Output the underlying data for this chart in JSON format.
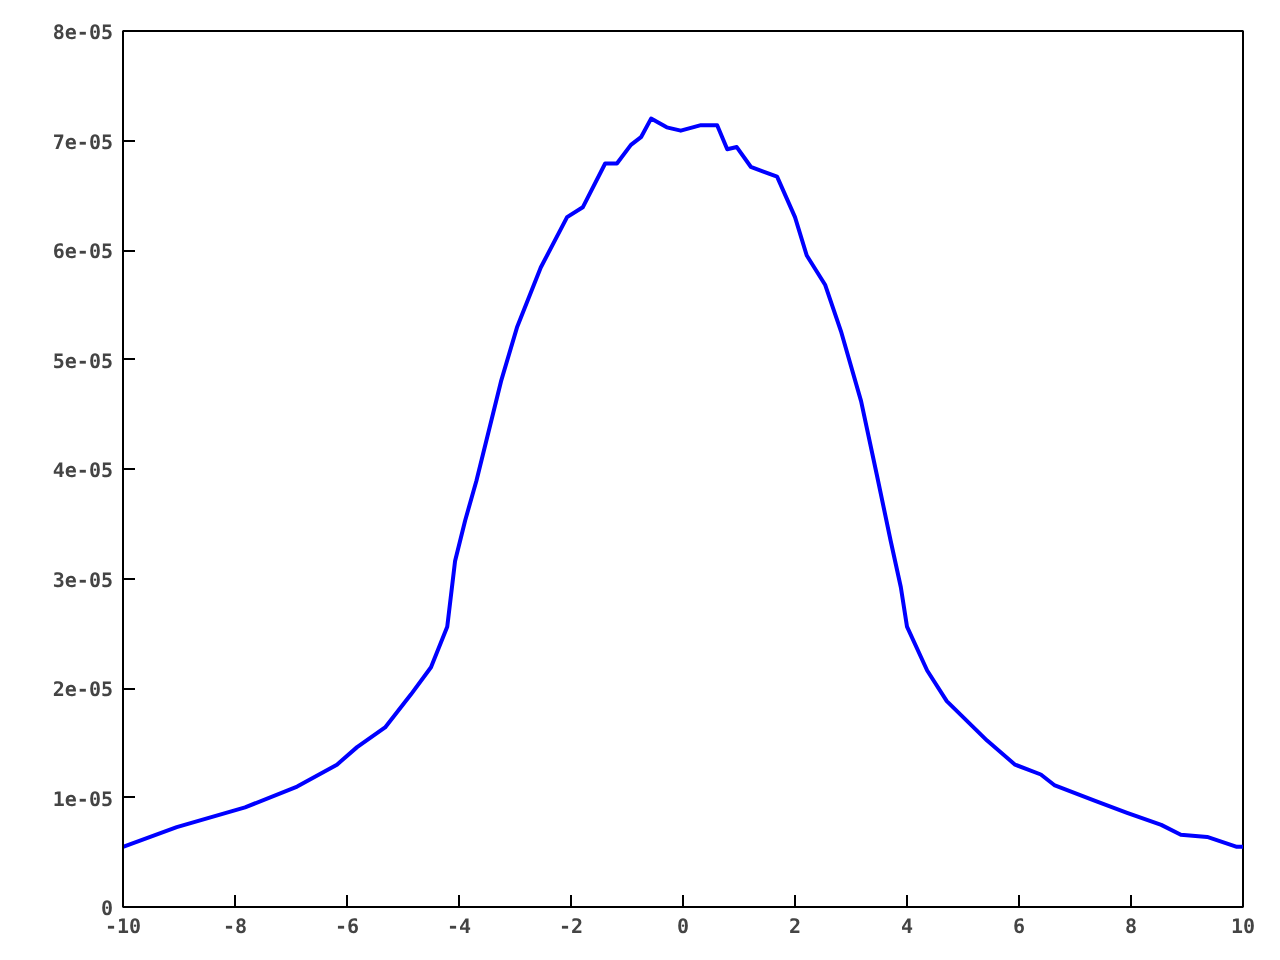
{
  "chart_data": {
    "type": "line",
    "grid": false,
    "marker": "none",
    "line_style": "solid",
    "xlim": [
      -10,
      10
    ],
    "ylim": [
      0,
      8e-05
    ],
    "xticks": [
      -10,
      -8,
      -6,
      -4,
      -2,
      0,
      2,
      4,
      6,
      8,
      10
    ],
    "yticks": [
      {
        "value": 0,
        "label": "0"
      },
      {
        "value": 1e-05,
        "label": "1e-05"
      },
      {
        "value": 2e-05,
        "label": "2e-05"
      },
      {
        "value": 3e-05,
        "label": "3e-05"
      },
      {
        "value": 4e-05,
        "label": "4e-05"
      },
      {
        "value": 5e-05,
        "label": "5e-05"
      },
      {
        "value": 6e-05,
        "label": "6e-05"
      },
      {
        "value": 7e-05,
        "label": "7e-05"
      },
      {
        "value": 8e-05,
        "label": "8e-05"
      }
    ],
    "series": [
      {
        "color": "#0000ff",
        "x": [
          -10,
          -9.04,
          -7.82,
          -6.89,
          -6.18,
          -5.82,
          -5.32,
          -4.86,
          -4.5,
          -4.21,
          -4.07,
          -3.89,
          -3.69,
          -3.25,
          -2.96,
          -2.54,
          -2.07,
          -1.79,
          -1.39,
          -1.18,
          -0.93,
          -0.75,
          -0.57,
          -0.29,
          -0.04,
          0.32,
          0.61,
          0.79,
          0.96,
          1.21,
          1.57,
          1.68,
          2.0,
          2.21,
          2.54,
          2.82,
          3.18,
          3.46,
          3.71,
          3.89,
          4.0,
          4.36,
          4.71,
          5.43,
          5.93,
          6.39,
          6.64,
          7.36,
          7.93,
          8.54,
          8.89,
          9.36,
          9.89,
          10
        ],
        "values": [
          5.5e-06,
          7.3e-06,
          9.1e-06,
          1.1e-05,
          1.3e-05,
          1.46e-05,
          1.64e-05,
          1.94e-05,
          2.19e-05,
          2.56e-05,
          3.16e-05,
          3.53e-05,
          3.89e-05,
          4.8e-05,
          5.3e-05,
          5.84e-05,
          6.3e-05,
          6.39e-05,
          6.79e-05,
          6.79e-05,
          6.96e-05,
          7.03e-05,
          7.2e-05,
          7.12e-05,
          7.09e-05,
          7.14e-05,
          7.14e-05,
          6.92e-05,
          6.94e-05,
          6.76e-05,
          6.69e-05,
          6.67e-05,
          6.3e-05,
          5.95e-05,
          5.68e-05,
          5.26e-05,
          4.62e-05,
          3.95e-05,
          3.34e-05,
          2.92e-05,
          2.56e-05,
          2.16e-05,
          1.88e-05,
          1.52e-05,
          1.3e-05,
          1.21e-05,
          1.11e-05,
          9.7e-06,
          8.6e-06,
          7.5e-06,
          6.6e-06,
          6.4e-06,
          5.5e-06,
          5.5e-06
        ]
      }
    ]
  }
}
